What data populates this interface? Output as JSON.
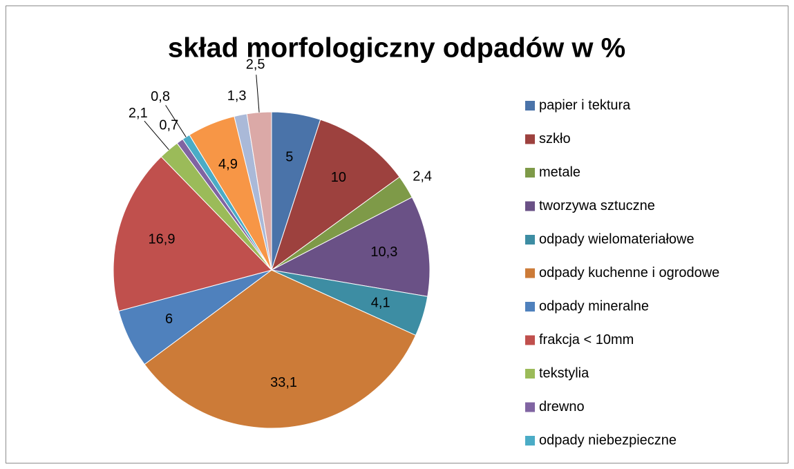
{
  "chart_data": {
    "type": "pie",
    "title": "skład morfologiczny odpadów w %",
    "categories": [
      "papier i tektura",
      "szkło",
      "metale",
      "tworzywa sztuczne",
      "odpady wielomateriałowe",
      "odpady kuchenne i ogrodowe",
      "odpady mineralne",
      "frakcja < 10mm",
      "tekstylia",
      "drewno",
      "odpady niebezpieczne",
      null,
      null,
      null
    ],
    "values": [
      5,
      10,
      2.4,
      10.3,
      4.1,
      33.1,
      6,
      16.9,
      2.1,
      0.7,
      0.8,
      4.9,
      1.3,
      2.5
    ],
    "value_labels": [
      "5",
      "10",
      "2,4",
      "10,3",
      "4,1",
      "33,1",
      "6",
      "16,9",
      "2,1",
      "0,7",
      "0,8",
      "4,9",
      "1,3",
      "2,5"
    ],
    "colors": [
      "#4a73a9",
      "#9d413e",
      "#7e9a48",
      "#6a5186",
      "#3d8da3",
      "#cc7b38",
      "#4f81bd",
      "#c0504d",
      "#9bbb59",
      "#8064a2",
      "#4bacc6",
      "#f79646",
      "#aab9d8",
      "#dba9a7"
    ],
    "legend": "right"
  }
}
